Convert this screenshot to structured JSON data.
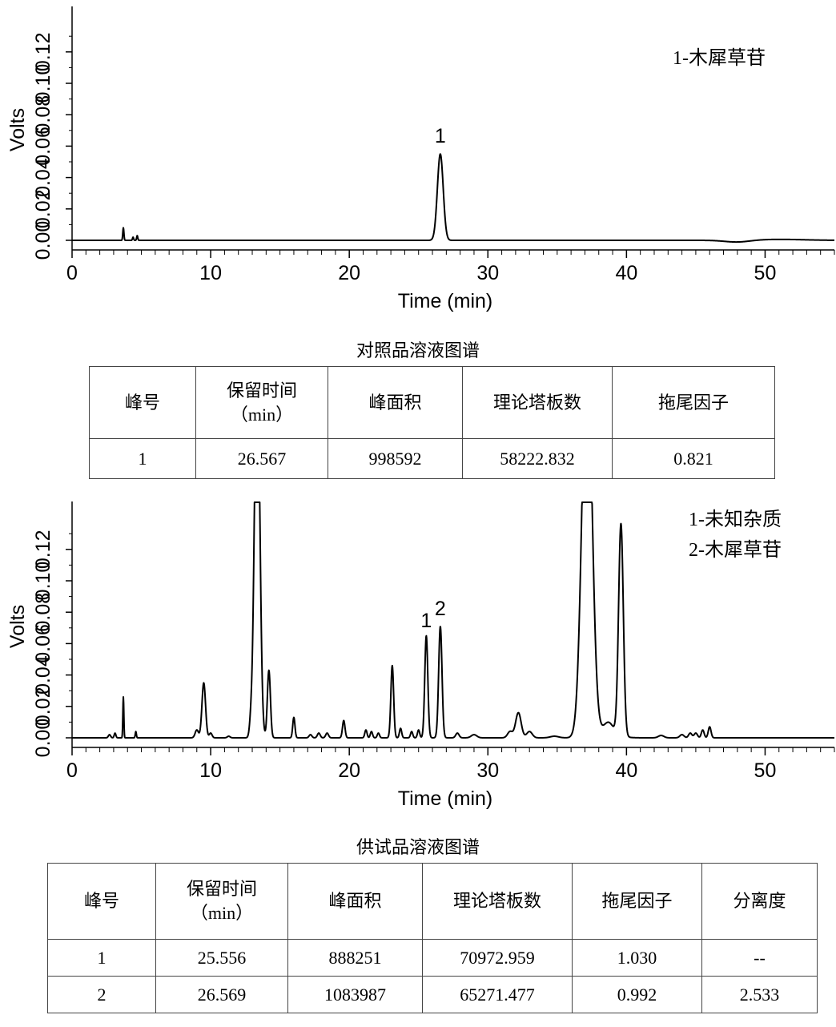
{
  "chart_data": [
    {
      "type": "line",
      "ylabel": "Volts",
      "xlabel": "Time (min)",
      "xlim": [
        0,
        55
      ],
      "ylim": [
        -0.01,
        0.15
      ],
      "xticks": [
        "0",
        "10",
        "20",
        "30",
        "40",
        "50"
      ],
      "yticks": [
        "0.00",
        "0.02",
        "0.04",
        "0.06",
        "0.08",
        "0.10",
        "0.12"
      ],
      "legend": [
        "1-木犀草苷"
      ],
      "peak_labels": [
        {
          "label": "1",
          "x": 26.567
        }
      ],
      "peaks": [
        {
          "t": 3.7,
          "h": 0.008,
          "w": 0.04
        },
        {
          "t": 4.4,
          "h": 0.002,
          "w": 0.04
        },
        {
          "t": 4.7,
          "h": 0.003,
          "w": 0.04
        },
        {
          "t": 26.567,
          "h": 0.055,
          "w": 0.21
        }
      ],
      "baseline_bumps": [
        {
          "t": 48.0,
          "h": -0.0012,
          "w": 0.9
        },
        {
          "t": 51.0,
          "h": 0.0006,
          "w": 1.8
        }
      ]
    },
    {
      "type": "line",
      "ylabel": "Volts",
      "xlabel": "Time (min)",
      "xlim": [
        0,
        55
      ],
      "ylim": [
        -0.01,
        0.15
      ],
      "xticks": [
        "0",
        "10",
        "20",
        "30",
        "40",
        "50"
      ],
      "yticks": [
        "0.00",
        "0.02",
        "0.04",
        "0.06",
        "0.08",
        "0.10",
        "0.12"
      ],
      "legend": [
        "1-未知杂质",
        "2-木犀草苷"
      ],
      "peak_labels": [
        {
          "label": "1",
          "x": 25.556
        },
        {
          "label": "2",
          "x": 26.569
        }
      ],
      "peaks": [
        {
          "t": 2.7,
          "h": 0.002,
          "w": 0.08
        },
        {
          "t": 3.1,
          "h": 0.003,
          "w": 0.06
        },
        {
          "t": 3.7,
          "h": 0.026,
          "w": 0.035
        },
        {
          "t": 4.6,
          "h": 0.004,
          "w": 0.04
        },
        {
          "t": 9.0,
          "h": 0.005,
          "w": 0.12
        },
        {
          "t": 9.5,
          "h": 0.035,
          "w": 0.13
        },
        {
          "t": 10.0,
          "h": 0.003,
          "w": 0.1
        },
        {
          "t": 11.3,
          "h": 0.001,
          "w": 0.1
        },
        {
          "t": 12.9,
          "h": 0.008,
          "w": 0.1
        },
        {
          "t": 13.35,
          "h": 0.25,
          "w": 0.19
        },
        {
          "t": 14.2,
          "h": 0.043,
          "w": 0.11
        },
        {
          "t": 16.0,
          "h": 0.013,
          "w": 0.08
        },
        {
          "t": 17.2,
          "h": 0.002,
          "w": 0.1
        },
        {
          "t": 17.8,
          "h": 0.003,
          "w": 0.1
        },
        {
          "t": 18.4,
          "h": 0.003,
          "w": 0.1
        },
        {
          "t": 19.6,
          "h": 0.011,
          "w": 0.09
        },
        {
          "t": 21.2,
          "h": 0.005,
          "w": 0.08
        },
        {
          "t": 21.6,
          "h": 0.004,
          "w": 0.08
        },
        {
          "t": 22.1,
          "h": 0.003,
          "w": 0.08
        },
        {
          "t": 23.1,
          "h": 0.046,
          "w": 0.1
        },
        {
          "t": 23.7,
          "h": 0.006,
          "w": 0.08
        },
        {
          "t": 24.5,
          "h": 0.004,
          "w": 0.08
        },
        {
          "t": 25.0,
          "h": 0.005,
          "w": 0.08
        },
        {
          "t": 25.556,
          "h": 0.065,
          "w": 0.11
        },
        {
          "t": 26.569,
          "h": 0.071,
          "w": 0.12
        },
        {
          "t": 27.8,
          "h": 0.003,
          "w": 0.12
        },
        {
          "t": 29.0,
          "h": 0.002,
          "w": 0.2
        },
        {
          "t": 31.6,
          "h": 0.004,
          "w": 0.18
        },
        {
          "t": 32.2,
          "h": 0.016,
          "w": 0.2
        },
        {
          "t": 33.0,
          "h": 0.004,
          "w": 0.2
        },
        {
          "t": 34.8,
          "h": 0.001,
          "w": 0.3
        },
        {
          "t": 37.15,
          "h": 0.25,
          "w": 0.36
        },
        {
          "t": 38.7,
          "h": 0.007,
          "w": 0.35
        },
        {
          "t": 39.6,
          "h": 0.135,
          "w": 0.17
        },
        {
          "t": 42.5,
          "h": 0.0015,
          "w": 0.2
        },
        {
          "t": 44.0,
          "h": 0.002,
          "w": 0.15
        },
        {
          "t": 44.6,
          "h": 0.003,
          "w": 0.12
        },
        {
          "t": 45.0,
          "h": 0.003,
          "w": 0.12
        },
        {
          "t": 45.5,
          "h": 0.005,
          "w": 0.1
        },
        {
          "t": 46.0,
          "h": 0.007,
          "w": 0.1
        }
      ],
      "baseline_bumps": [
        {
          "t": 38.5,
          "h": 0.003,
          "w": 0.8
        }
      ]
    }
  ],
  "caption1": "对照品溶液图谱",
  "caption2": "供试品溶液图谱",
  "table1": {
    "headers": [
      "峰号",
      "保留时间",
      "（min）",
      "峰面积",
      "理论塔板数",
      "拖尾因子"
    ],
    "rows": [
      [
        "1",
        "26.567",
        "998592",
        "58222.832",
        "0.821"
      ]
    ]
  },
  "table2": {
    "headers": [
      "峰号",
      "保留时间",
      "（min）",
      "峰面积",
      "理论塔板数",
      "拖尾因子",
      "分离度"
    ],
    "rows": [
      [
        "1",
        "25.556",
        "888251",
        "70972.959",
        "1.030",
        "--"
      ],
      [
        "2",
        "26.569",
        "1083987",
        "65271.477",
        "0.992",
        "2.533"
      ]
    ]
  }
}
